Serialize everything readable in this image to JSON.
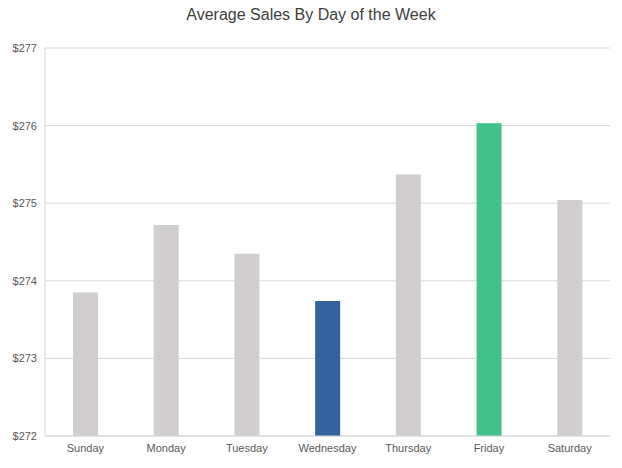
{
  "chart_data": {
    "type": "bar",
    "title": "Average Sales By Day of the Week",
    "categories": [
      "Sunday",
      "Monday",
      "Tuesday",
      "Wednesday",
      "Thursday",
      "Friday",
      "Saturday"
    ],
    "values": [
      273.85,
      274.72,
      274.35,
      273.74,
      275.37,
      276.03,
      275.04
    ],
    "colors": [
      "#d0cece",
      "#d0cece",
      "#d0cece",
      "#35619e",
      "#d0cece",
      "#40c28a",
      "#d0cece"
    ],
    "ylim": [
      272,
      277
    ],
    "yticks": [
      {
        "value": 272,
        "label": "$272"
      },
      {
        "value": 273,
        "label": "$273"
      },
      {
        "value": 274,
        "label": "$274"
      },
      {
        "value": 275,
        "label": "$275"
      },
      {
        "value": 276,
        "label": "$276"
      },
      {
        "value": 277,
        "label": "$277"
      }
    ],
    "grid": true
  }
}
